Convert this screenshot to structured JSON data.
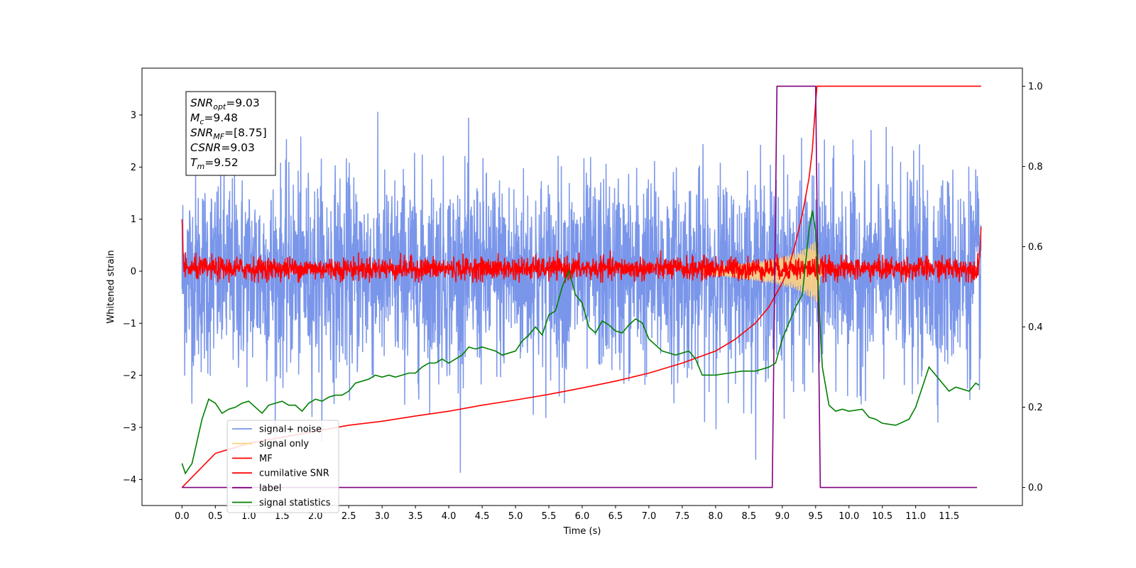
{
  "chart_data": {
    "type": "line",
    "title": "",
    "xlabel": "Time (s)",
    "ylabel": "Whitened strain",
    "xlim": [
      -0.6,
      12.6
    ],
    "ylim": [
      -4.5,
      3.9
    ],
    "y2lim": [
      -0.045,
      1.045
    ],
    "x_ticks": [
      0.0,
      0.5,
      1.0,
      1.5,
      2.0,
      2.5,
      3.0,
      3.5,
      4.0,
      4.5,
      5.0,
      5.5,
      6.0,
      6.5,
      7.0,
      7.5,
      8.0,
      8.5,
      9.0,
      9.5,
      10.0,
      10.5,
      11.0,
      11.5
    ],
    "x_tick_labels": [
      "0.0",
      "0.5",
      "1.0",
      "1.5",
      "2.0",
      "2.5",
      "3.0",
      "3.5",
      "4.0",
      "4.5",
      "5.0",
      "5.5",
      "6.0",
      "6.5",
      "7.0",
      "7.5",
      "8.0",
      "8.5",
      "9.0",
      "9.5",
      "10.0",
      "10.5",
      "11.0",
      "11.5"
    ],
    "y_ticks": [
      -4,
      -3,
      -2,
      -1,
      0,
      1,
      2,
      3
    ],
    "y_tick_labels": [
      "−4",
      "−3",
      "−2",
      "−1",
      "0",
      "1",
      "2",
      "3"
    ],
    "y2_ticks": [
      0.0,
      0.2,
      0.4,
      0.6,
      0.8,
      1.0
    ],
    "y2_tick_labels": [
      "0.0",
      "0.2",
      "0.4",
      "0.6",
      "0.8",
      "1.0"
    ],
    "grid": false,
    "legend_position": "lower-left",
    "annotation": {
      "lines": [
        {
          "base": "SNR",
          "sub": "opt",
          "rest": "=9.03"
        },
        {
          "base": "M",
          "sub": "c",
          "rest": "=9.48"
        },
        {
          "base": "SNR",
          "sub": "MF",
          "rest": "=[8.75]"
        },
        {
          "base": "CSNR",
          "sub": "",
          "rest": "=9.03"
        },
        {
          "base": "T",
          "sub": "m",
          "rest": "=9.52"
        }
      ]
    },
    "series": [
      {
        "name": "signal+ noise",
        "color": "#4169e1",
        "axis": "left",
        "description": "noise band with standard deviation about 1, between x 0 and 11.98",
        "x_range": [
          0.0,
          11.98
        ],
        "spread": 0.95,
        "offset": -0.05
      },
      {
        "name": "signal only",
        "color": "#ffd27f",
        "axis": "left",
        "envelope": [
          [
            7.8,
            0.05
          ],
          [
            8.4,
            0.15
          ],
          [
            8.8,
            0.22
          ],
          [
            9.0,
            0.28
          ],
          [
            9.2,
            0.35
          ],
          [
            9.35,
            0.45
          ],
          [
            9.45,
            0.55
          ],
          [
            9.52,
            0.6
          ],
          [
            9.58,
            0.1
          ],
          [
            9.62,
            0.0
          ]
        ]
      },
      {
        "name": "MF",
        "color": "#ff0000",
        "axis": "left",
        "x_range": [
          0.0,
          11.98
        ],
        "spread": 0.11,
        "offset": 0.05,
        "edge_points": [
          [
            0.0,
            1.0
          ],
          [
            0.02,
            0.2
          ],
          [
            11.96,
            0.3
          ],
          [
            11.98,
            0.85
          ]
        ]
      },
      {
        "name": "cumilative SNR",
        "color": "#ff0000",
        "axis": "right",
        "points": [
          [
            0.0,
            0.0
          ],
          [
            0.5,
            0.085
          ],
          [
            1.0,
            0.11
          ],
          [
            1.5,
            0.125
          ],
          [
            2.0,
            0.14
          ],
          [
            2.5,
            0.155
          ],
          [
            3.0,
            0.165
          ],
          [
            3.5,
            0.178
          ],
          [
            4.0,
            0.19
          ],
          [
            4.5,
            0.205
          ],
          [
            5.0,
            0.218
          ],
          [
            5.5,
            0.232
          ],
          [
            6.0,
            0.248
          ],
          [
            6.5,
            0.265
          ],
          [
            7.0,
            0.285
          ],
          [
            7.5,
            0.31
          ],
          [
            8.0,
            0.34
          ],
          [
            8.3,
            0.37
          ],
          [
            8.6,
            0.41
          ],
          [
            8.8,
            0.45
          ],
          [
            9.0,
            0.51
          ],
          [
            9.1,
            0.55
          ],
          [
            9.2,
            0.61
          ],
          [
            9.3,
            0.68
          ],
          [
            9.4,
            0.77
          ],
          [
            9.45,
            0.84
          ],
          [
            9.5,
            0.96
          ],
          [
            9.52,
            1.0
          ],
          [
            9.55,
            1.0
          ],
          [
            11.98,
            1.0
          ]
        ]
      },
      {
        "name": "label",
        "color": "#800080",
        "axis": "right",
        "points": [
          [
            0.0,
            0.0
          ],
          [
            8.85,
            0.0
          ],
          [
            8.92,
            1.0
          ],
          [
            9.5,
            1.0
          ],
          [
            9.57,
            0.0
          ],
          [
            11.92,
            0.0
          ]
        ]
      },
      {
        "name": "signal statistics",
        "color": "#008000",
        "axis": "right",
        "points": [
          [
            0.0,
            0.06
          ],
          [
            0.05,
            0.035
          ],
          [
            0.15,
            0.06
          ],
          [
            0.3,
            0.17
          ],
          [
            0.4,
            0.22
          ],
          [
            0.5,
            0.21
          ],
          [
            0.6,
            0.185
          ],
          [
            0.7,
            0.195
          ],
          [
            0.8,
            0.2
          ],
          [
            0.9,
            0.21
          ],
          [
            1.0,
            0.215
          ],
          [
            1.1,
            0.2
          ],
          [
            1.2,
            0.185
          ],
          [
            1.3,
            0.205
          ],
          [
            1.4,
            0.21
          ],
          [
            1.5,
            0.215
          ],
          [
            1.6,
            0.205
          ],
          [
            1.7,
            0.205
          ],
          [
            1.8,
            0.19
          ],
          [
            1.9,
            0.21
          ],
          [
            2.0,
            0.22
          ],
          [
            2.1,
            0.215
          ],
          [
            2.2,
            0.225
          ],
          [
            2.3,
            0.23
          ],
          [
            2.4,
            0.23
          ],
          [
            2.5,
            0.24
          ],
          [
            2.6,
            0.26
          ],
          [
            2.7,
            0.265
          ],
          [
            2.8,
            0.27
          ],
          [
            2.9,
            0.28
          ],
          [
            3.0,
            0.275
          ],
          [
            3.1,
            0.28
          ],
          [
            3.2,
            0.275
          ],
          [
            3.3,
            0.28
          ],
          [
            3.4,
            0.285
          ],
          [
            3.5,
            0.285
          ],
          [
            3.6,
            0.3
          ],
          [
            3.7,
            0.31
          ],
          [
            3.8,
            0.31
          ],
          [
            3.9,
            0.32
          ],
          [
            4.0,
            0.31
          ],
          [
            4.1,
            0.32
          ],
          [
            4.2,
            0.33
          ],
          [
            4.3,
            0.35
          ],
          [
            4.4,
            0.345
          ],
          [
            4.5,
            0.35
          ],
          [
            4.6,
            0.345
          ],
          [
            4.7,
            0.34
          ],
          [
            4.8,
            0.33
          ],
          [
            5.0,
            0.34
          ],
          [
            5.1,
            0.365
          ],
          [
            5.2,
            0.38
          ],
          [
            5.3,
            0.4
          ],
          [
            5.4,
            0.38
          ],
          [
            5.5,
            0.43
          ],
          [
            5.6,
            0.44
          ],
          [
            5.7,
            0.5
          ],
          [
            5.8,
            0.54
          ],
          [
            5.9,
            0.48
          ],
          [
            6.0,
            0.46
          ],
          [
            6.1,
            0.4
          ],
          [
            6.2,
            0.385
          ],
          [
            6.3,
            0.415
          ],
          [
            6.4,
            0.405
          ],
          [
            6.5,
            0.39
          ],
          [
            6.6,
            0.385
          ],
          [
            6.7,
            0.405
          ],
          [
            6.8,
            0.42
          ],
          [
            6.9,
            0.41
          ],
          [
            7.0,
            0.37
          ],
          [
            7.2,
            0.34
          ],
          [
            7.4,
            0.33
          ],
          [
            7.6,
            0.34
          ],
          [
            7.7,
            0.32
          ],
          [
            7.8,
            0.28
          ],
          [
            8.0,
            0.28
          ],
          [
            8.2,
            0.285
          ],
          [
            8.4,
            0.29
          ],
          [
            8.6,
            0.29
          ],
          [
            8.8,
            0.3
          ],
          [
            8.9,
            0.31
          ],
          [
            9.0,
            0.37
          ],
          [
            9.1,
            0.41
          ],
          [
            9.2,
            0.45
          ],
          [
            9.3,
            0.48
          ],
          [
            9.4,
            0.64
          ],
          [
            9.45,
            0.69
          ],
          [
            9.5,
            0.64
          ],
          [
            9.55,
            0.46
          ],
          [
            9.6,
            0.3
          ],
          [
            9.7,
            0.205
          ],
          [
            9.8,
            0.19
          ],
          [
            9.9,
            0.195
          ],
          [
            10.0,
            0.19
          ],
          [
            10.2,
            0.195
          ],
          [
            10.3,
            0.175
          ],
          [
            10.4,
            0.17
          ],
          [
            10.5,
            0.16
          ],
          [
            10.7,
            0.155
          ],
          [
            10.9,
            0.17
          ],
          [
            11.0,
            0.2
          ],
          [
            11.1,
            0.25
          ],
          [
            11.2,
            0.3
          ],
          [
            11.3,
            0.28
          ],
          [
            11.5,
            0.24
          ],
          [
            11.6,
            0.25
          ],
          [
            11.8,
            0.24
          ],
          [
            11.9,
            0.26
          ],
          [
            11.95,
            0.255
          ]
        ]
      }
    ]
  }
}
